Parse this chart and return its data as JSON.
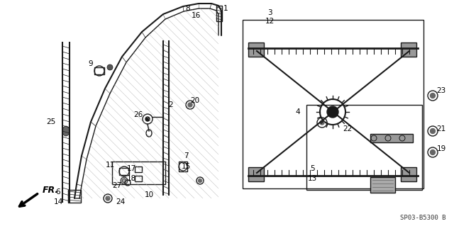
{
  "bg_color": "#ffffff",
  "line_color": "#1a1a1a",
  "gray_color": "#888888",
  "code": "SP03-B5300 B",
  "figsize": [
    6.4,
    3.19
  ],
  "dpi": 100
}
